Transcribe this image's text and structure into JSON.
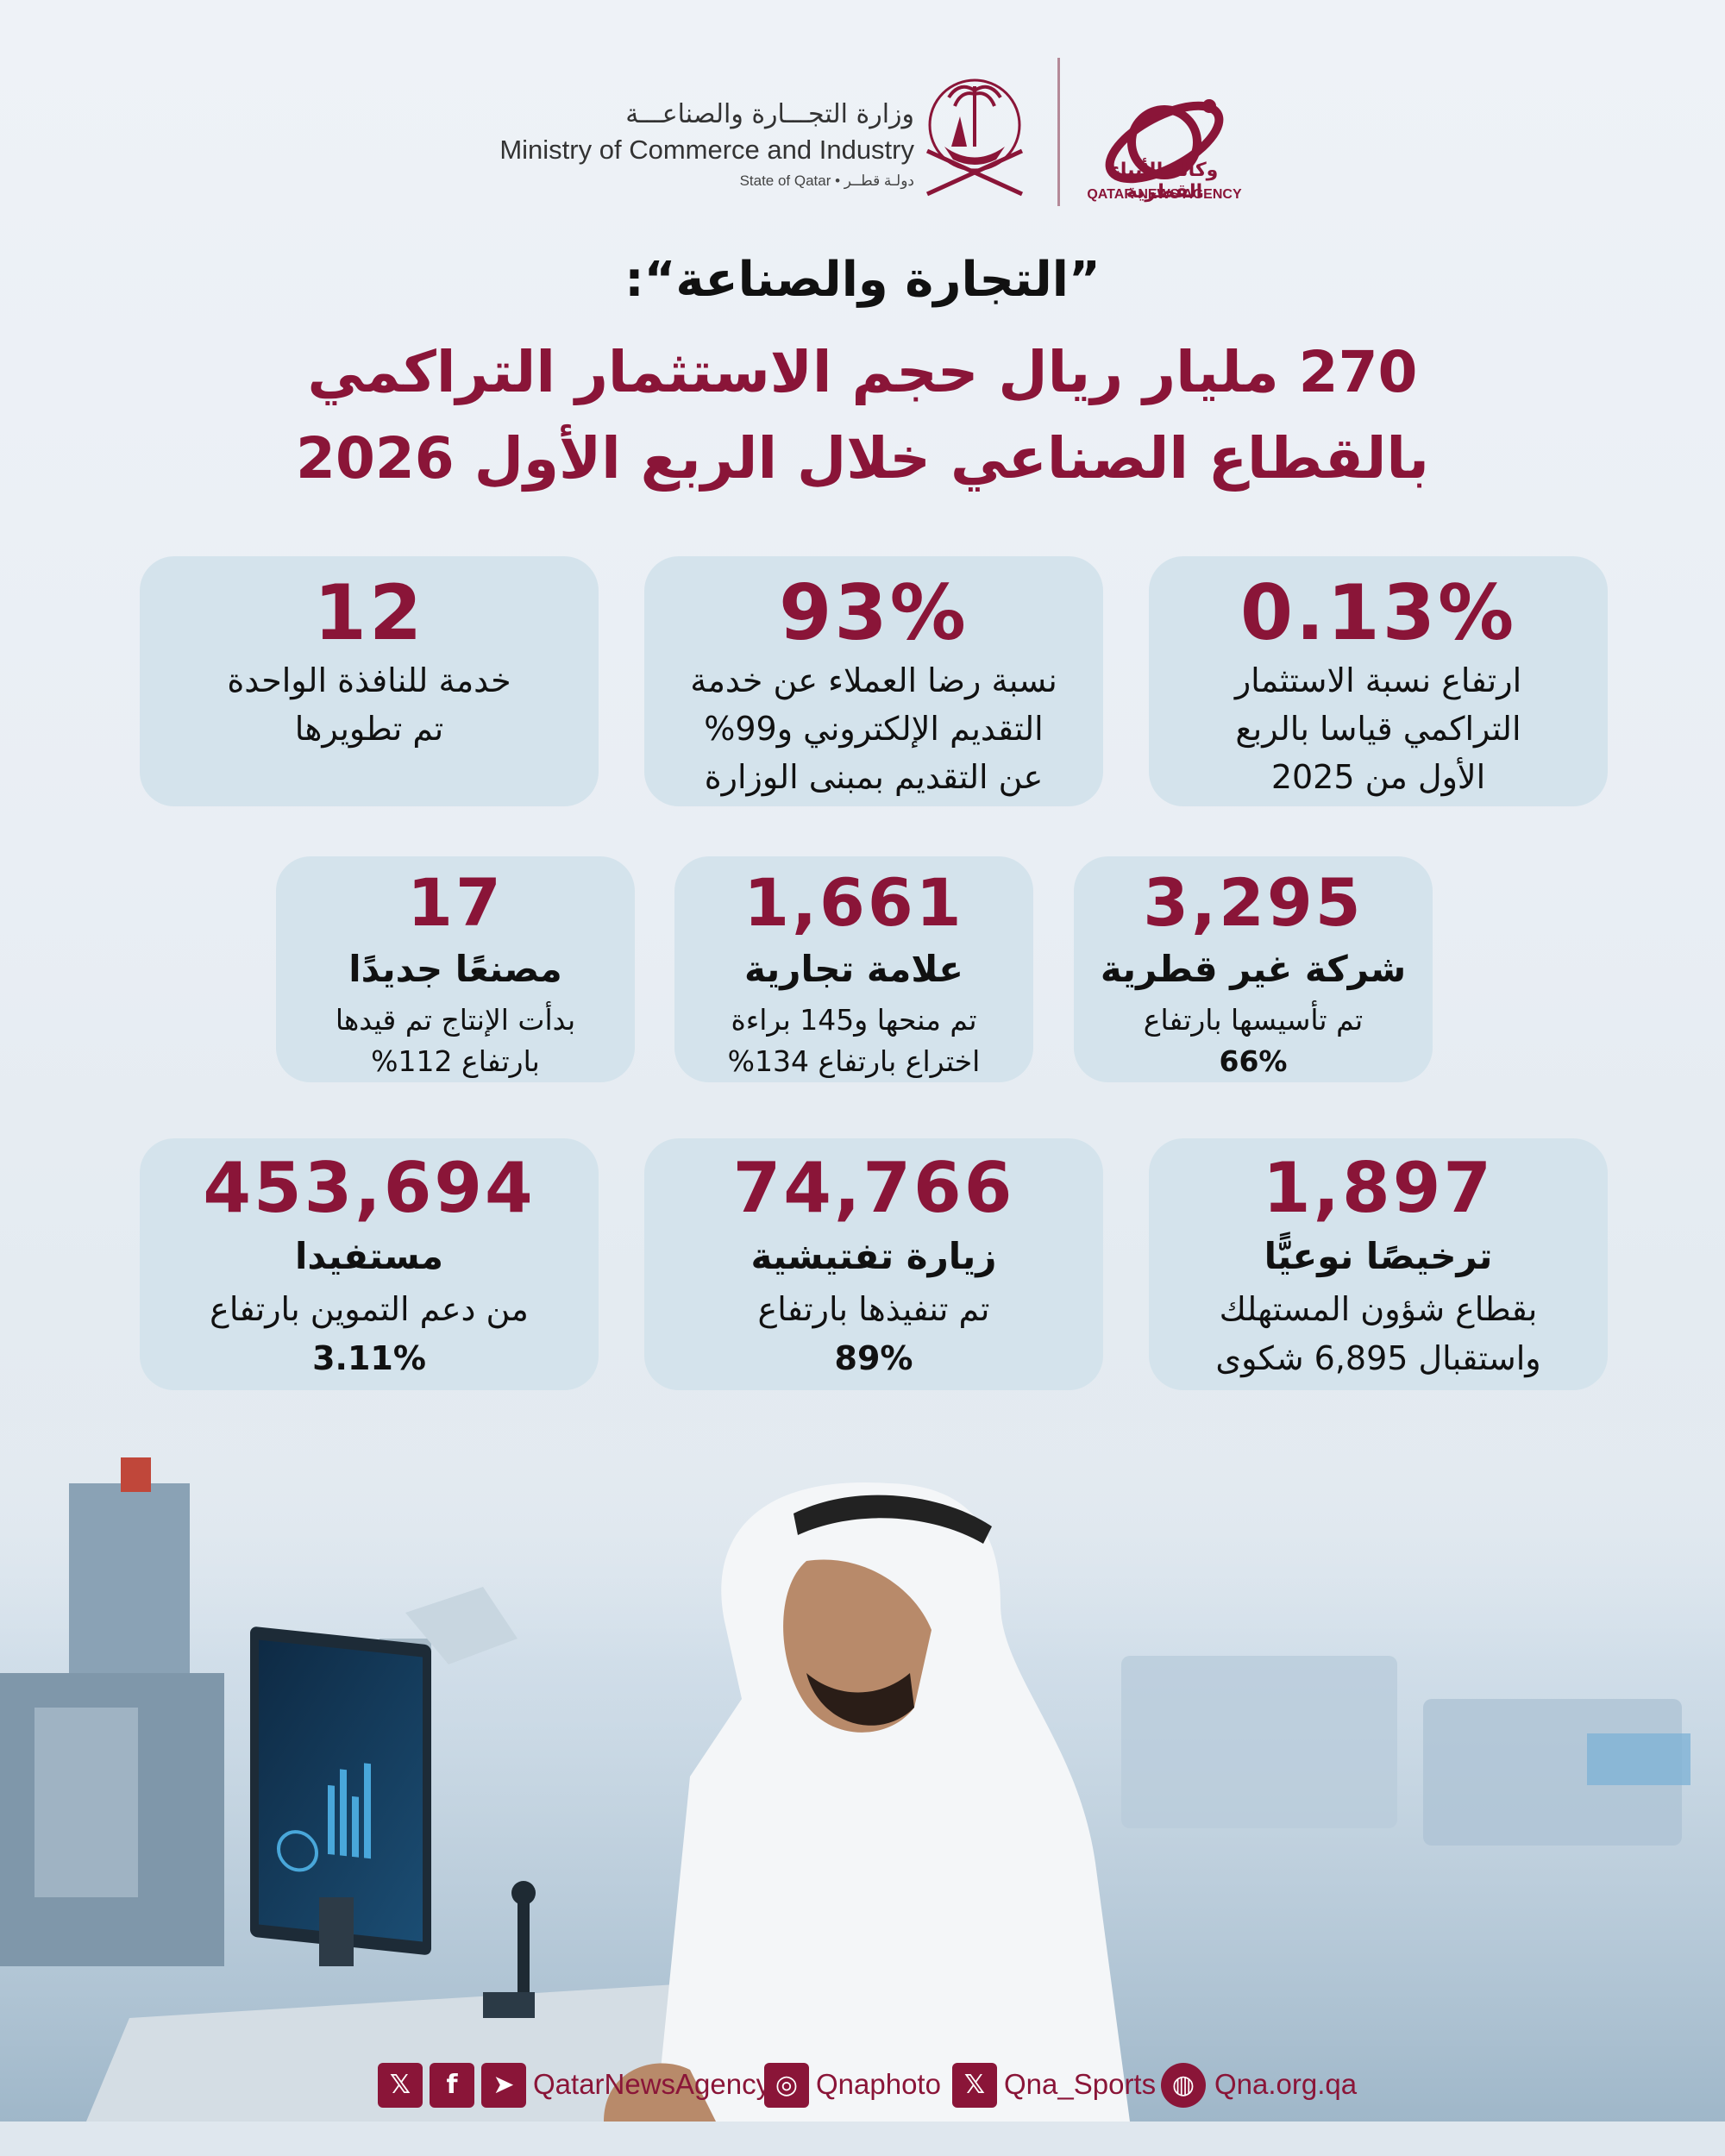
{
  "header": {
    "ministry_ar": "وزارة التجـــارة والصناعـــة",
    "ministry_en": "Ministry of Commerce and Industry",
    "state_line": "State of Qatar • دولـة قطــر",
    "agency_ar": "وكالة الأنباء القطرية",
    "agency_en": "QATAR NEWS AGENCY"
  },
  "title": {
    "line1": "”التجارة والصناعة“:",
    "line2": "270 مليار ريال حجم الاستثمار التراكمي",
    "line3": "بالقطاع الصناعي خلال الربع الأول 2026"
  },
  "stats": {
    "row1": [
      {
        "value": "0.13%",
        "lines": [
          "ارتفاع نسبة الاستثمار",
          "التراكمي قياسا بالربع",
          "الأول من 2025"
        ]
      },
      {
        "value": "93%",
        "lines": [
          "نسبة رضا العملاء عن خدمة",
          "التقديم الإلكتروني و99%",
          "عن التقديم بمبنى الوزارة"
        ]
      },
      {
        "value": "12",
        "lines": [
          "خدمة للنافذة الواحدة",
          "تم تطويرها"
        ]
      }
    ],
    "row2": [
      {
        "value": "3,295",
        "label": "شركة غير قطرية",
        "lines": [
          "تم تأسيسها بارتفاع",
          "66%"
        ]
      },
      {
        "value": "1,661",
        "label": "علامة تجارية",
        "lines": [
          "تم منحها و145 براءة",
          "اختراع بارتفاع 134%"
        ]
      },
      {
        "value": "17",
        "label": "مصنعًا جديدًا",
        "lines": [
          "بدأت الإنتاج تم قيدها",
          "بارتفاع 112%"
        ]
      }
    ],
    "row3": [
      {
        "value": "1,897",
        "label": "ترخيصًا نوعيًّا",
        "lines": [
          "بقطاع شؤون المستهلك",
          "واستقبال 6,895 شكوى"
        ]
      },
      {
        "value": "74,766",
        "label": "زيارة تفتيشية",
        "lines": [
          "تم تنفيذها بارتفاع",
          "89%"
        ]
      },
      {
        "value": "453,694",
        "label": "مستفيدا",
        "lines": [
          "من دعم التموين بارتفاع",
          "3.11%"
        ]
      }
    ]
  },
  "footer": {
    "handle_main": "QatarNewsAgency",
    "handle_photo": "Qnaphoto",
    "handle_sports": "Qna_Sports",
    "website": "Qna.org.qa"
  },
  "colors": {
    "brand": "#8a1538",
    "card_bg": "#d4e3ec",
    "page_bg": "#e9eef4"
  }
}
